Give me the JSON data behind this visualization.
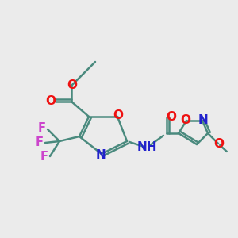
{
  "background_color": "#ebebeb",
  "bond_color": "#4a8a7e",
  "bond_width": 1.8,
  "atom_colors": {
    "O": "#ee1111",
    "N": "#2222cc",
    "F": "#cc44cc",
    "C": "#4a8a7e"
  },
  "font_size_atoms": 11,
  "font_size_small": 9.5,
  "xlim": [
    0,
    300
  ],
  "ylim": [
    0,
    300
  ],
  "figsize": [
    3.0,
    3.0
  ],
  "dpi": 100
}
